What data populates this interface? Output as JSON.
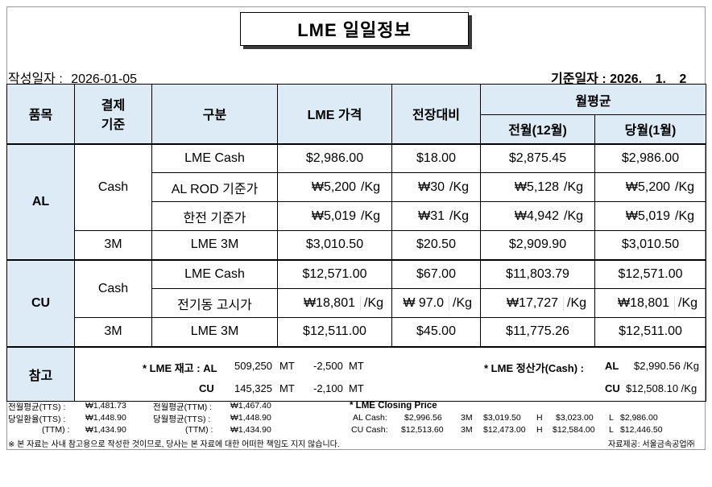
{
  "title": "LME 일일정보",
  "meta": {
    "written_label": "작성일자 :",
    "written_date": "2026-01-05",
    "base_label": "기준일자 :",
    "base_year": "2026.",
    "base_month": "1.",
    "base_day": "2"
  },
  "header": {
    "item": "품목",
    "settle1": "결제",
    "settle2": "기준",
    "category": "구분",
    "lme_price": "LME 가격",
    "change": "전장대비",
    "monthly_avg": "월평균",
    "prev_month": "전월(12월)",
    "this_month": "당월(1월)"
  },
  "al": {
    "item": "AL",
    "cash_label": "Cash",
    "m3_label": "3M",
    "rows": [
      {
        "category": "LME Cash",
        "price": "$2,986.00",
        "change": "$18.00",
        "prev": "$2,875.45",
        "curr": "$2,986.00"
      },
      {
        "category": "AL ROD 기준가",
        "price": "₩5,200",
        "change": "₩30",
        "prev": "₩5,128",
        "curr": "₩5,200"
      },
      {
        "category": "한전 기준가",
        "price": "₩5,019",
        "change": "₩31",
        "prev": "₩4,942",
        "curr": "₩5,019"
      },
      {
        "category": "LME  3M",
        "price": "$3,010.50",
        "change": "$20.50",
        "prev": "$2,909.90",
        "curr": "$3,010.50"
      }
    ]
  },
  "cu": {
    "item": "CU",
    "cash_label": "Cash",
    "m3_label": "3M",
    "rows": [
      {
        "category": "LME Cash",
        "price": "$12,571.00",
        "change": "$67.00",
        "prev": "$11,803.79",
        "curr": "$12,571.00"
      },
      {
        "category": "전기동 고시가",
        "price": "₩18,801",
        "change": "₩ 97.0",
        "prev": "₩17,727",
        "curr": "₩18,801"
      },
      {
        "category": "LME 3M",
        "price": "$12,511.00",
        "change": "$45.00",
        "prev": "$11,775.26",
        "curr": "$12,511.00"
      }
    ]
  },
  "unit_kg": "/Kg",
  "reference": {
    "label": "참고",
    "stock_label": "* LME 재고 : AL",
    "al_stock": "509,250",
    "al_stock_unit": "MT",
    "al_stock_change": "-2,500",
    "al_stock_change_unit": "MT",
    "cu_label": "CU",
    "cu_stock": "145,325",
    "cu_stock_unit": "MT",
    "cu_stock_change": "-2,100",
    "cu_stock_change_unit": "MT",
    "settle_label": "* LME 정산가(Cash) :",
    "settle_al_label": "AL",
    "settle_al": "$2,990.56 /Kg",
    "settle_cu_label": "CU",
    "settle_cu": "$12,508.10 /Kg"
  },
  "footer": {
    "r1_l1": "전월평균(TTS) :",
    "r1_v1": "₩1,481.73",
    "r1_l2": "전월평균(TTM) :",
    "r1_v2": "₩1,467.40",
    "r2_l1": "당일환율(TTS) :",
    "r2_v1": "₩1,448.90",
    "r2_l2": "당월평균(TTS) :",
    "r2_v2": "₩1,448.90",
    "r3_l1": "(TTM) :",
    "r3_v1": "₩1,434.90",
    "r3_l2": "(TTM) :",
    "r3_v2": "₩1,434.90",
    "closing_title": "* LME Closing Price",
    "al_cash_label": "AL  Cash:",
    "al_cash": "$2,996.56",
    "al_3m_label": "3M",
    "al_3m": "$3,019.50",
    "al_h_label": "H",
    "al_h": "$3,023.00",
    "al_l_label": "L",
    "al_l": "$2,986.00",
    "cu_cash_label": "CU  Cash:",
    "cu_cash": "$12,513.60",
    "cu_3m_label": "3M",
    "cu_3m": "$12,473.00",
    "cu_h_label": "H",
    "cu_h": "$12,584.00",
    "cu_l_label": "L",
    "cu_l": "$12,446.50",
    "disclaimer": "※ 본 자료는 사내 참고용으로 작성한 것이므로, 당사는 본 자료에 대한 어떠한 책임도 지지 않습니다.",
    "source": "자료제공: 서울금속공업㈜"
  }
}
